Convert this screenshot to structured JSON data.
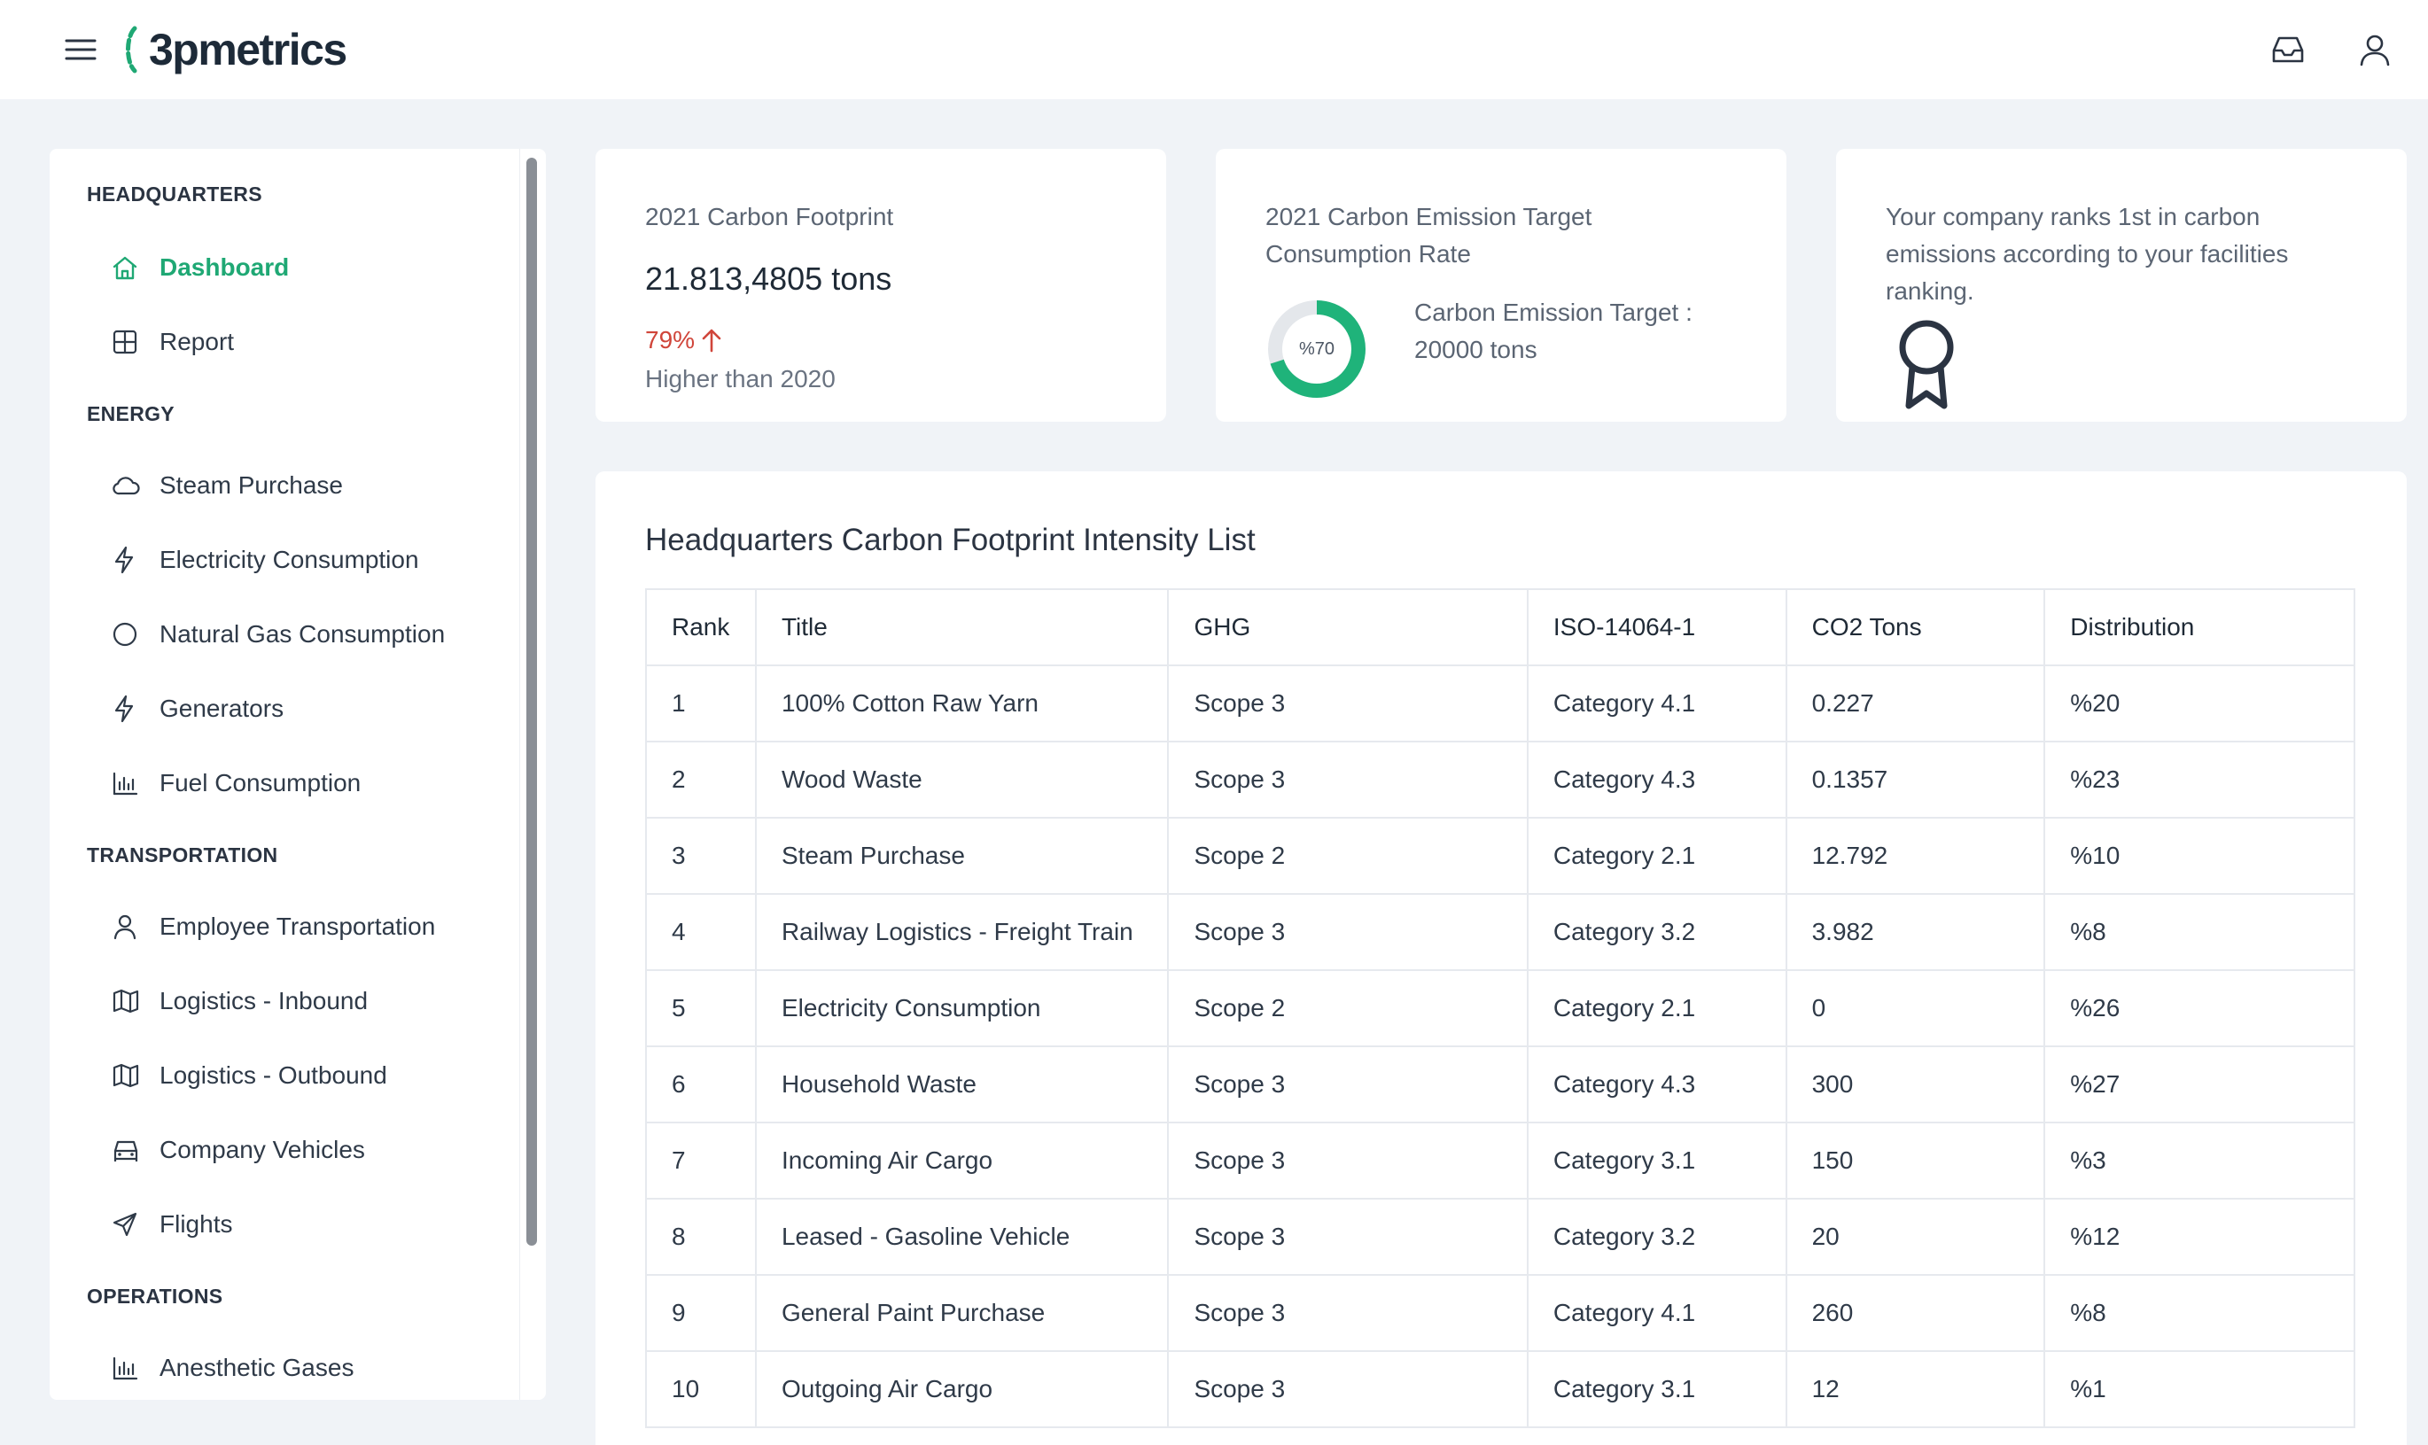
{
  "header": {
    "logo_text": "3pmetrics",
    "menu_icon": "hamburger-icon",
    "inbox_icon": "inbox-icon",
    "user_icon": "user-icon",
    "accent_color": "#1fa874"
  },
  "sidebar": {
    "sections": [
      {
        "title": "HEADQUARTERS",
        "items": [
          {
            "label": "Dashboard",
            "icon": "home-icon",
            "active": true
          },
          {
            "label": "Report",
            "icon": "table-icon"
          }
        ]
      },
      {
        "title": "ENERGY",
        "items": [
          {
            "label": "Steam Purchase",
            "icon": "cloud-icon"
          },
          {
            "label": "Electricity Consumption",
            "icon": "lightning-icon"
          },
          {
            "label": "Natural Gas Consumption",
            "icon": "circle-icon"
          },
          {
            "label": "Generators",
            "icon": "lightning-icon"
          },
          {
            "label": "Fuel Consumption",
            "icon": "bar-chart-icon"
          }
        ]
      },
      {
        "title": "TRANSPORTATION",
        "items": [
          {
            "label": "Employee Transportation",
            "icon": "person-icon"
          },
          {
            "label": "Logistics - Inbound",
            "icon": "map-icon"
          },
          {
            "label": "Logistics - Outbound",
            "icon": "map-icon"
          },
          {
            "label": "Company Vehicles",
            "icon": "car-icon"
          },
          {
            "label": "Flights",
            "icon": "send-icon"
          }
        ]
      },
      {
        "title": "OPERATIONS",
        "items": [
          {
            "label": "Anesthetic Gases",
            "icon": "bar-chart-icon"
          }
        ]
      }
    ]
  },
  "cards": {
    "footprint": {
      "title": "2021 Carbon Footprint",
      "value": "21.813,4805 tons",
      "change": "79%",
      "change_sub": "Higher than 2020",
      "trend_icon": "arrow-up-icon",
      "trend_color": "#d0453a"
    },
    "target": {
      "title_line1": "2021 Carbon Emission Target",
      "title_line2": "Consumption Rate",
      "donut_label": "%70",
      "donut_fraction": 0.7,
      "target_line1": "Carbon Emission Target :",
      "target_line2": "20000 tons"
    },
    "ranking": {
      "line1": "Your company ranks 1st in carbon",
      "line2": "emissions according to your facilities",
      "line3": "ranking.",
      "icon": "award-icon"
    }
  },
  "table": {
    "title": "Headquarters Carbon Footprint Intensity List",
    "columns": [
      "Rank",
      "Title",
      "GHG",
      "ISO-14064-1",
      "CO2 Tons",
      "Distribution"
    ],
    "rows": [
      [
        "1",
        "100% Cotton Raw Yarn",
        "Scope 3",
        "Category 4.1",
        "0.227",
        "%20"
      ],
      [
        "2",
        "Wood Waste",
        "Scope 3",
        "Category 4.3",
        "0.1357",
        "%23"
      ],
      [
        "3",
        "Steam Purchase",
        "Scope 2",
        "Category 2.1",
        "12.792",
        "%10"
      ],
      [
        "4",
        "Railway Logistics - Freight Train",
        "Scope 3",
        "Category 3.2",
        "3.982",
        "%8"
      ],
      [
        "5",
        "Electricity Consumption",
        "Scope 2",
        "Category 2.1",
        "0",
        "%26"
      ],
      [
        "6",
        "Household Waste",
        "Scope 3",
        "Category 4.3",
        "300",
        "%27"
      ],
      [
        "7",
        "Incoming Air Cargo",
        "Scope 3",
        "Category 3.1",
        "150",
        "%3"
      ],
      [
        "8",
        "Leased - Gasoline Vehicle",
        "Scope 3",
        "Category 3.2",
        "20",
        "%12"
      ],
      [
        "9",
        "General Paint Purchase",
        "Scope 3",
        "Category 4.1",
        "260",
        "%8"
      ],
      [
        "10",
        "Outgoing Air Cargo",
        "Scope 3",
        "Category 3.1",
        "12",
        "%1"
      ]
    ]
  }
}
